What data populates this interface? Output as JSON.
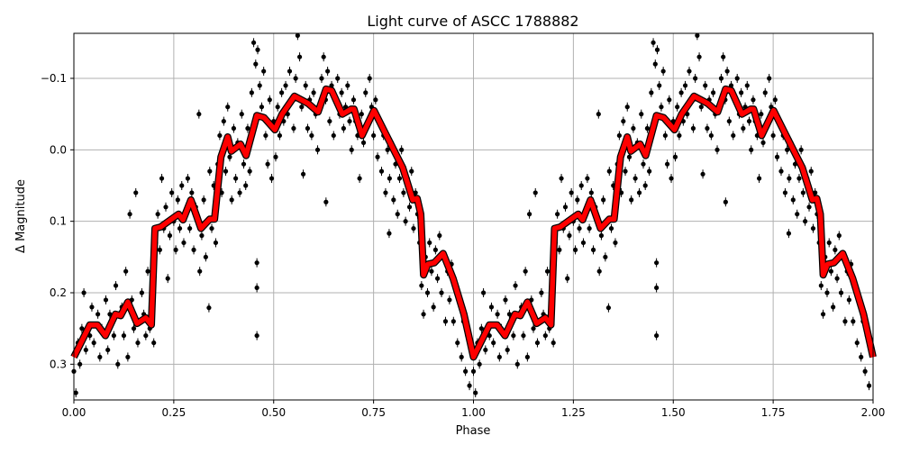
{
  "chart_data": {
    "type": "scatter",
    "title": "Light curve of ASCC 1788882",
    "xlabel": "Phase",
    "ylabel": "Δ Magnitude",
    "xlim": [
      0,
      2
    ],
    "ylim": [
      0.35,
      -0.163
    ],
    "y_inverted": true,
    "grid": true,
    "xticks": [
      "0.00",
      "0.25",
      "0.50",
      "0.75",
      "1.00",
      "1.25",
      "1.50",
      "1.75",
      "2.00"
    ],
    "xtick_values": [
      0,
      0.25,
      0.5,
      0.75,
      1,
      1.25,
      1.5,
      1.75,
      2
    ],
    "yticks": [
      "−0.1",
      "0.0",
      "0.1",
      "0.2",
      "0.3"
    ],
    "ytick_values": [
      -0.1,
      0,
      0.1,
      0.2,
      0.3
    ],
    "colors": {
      "points": "#000000",
      "model": "#ff0000",
      "model_outline": "#000000",
      "grid": "#b0b0b0"
    },
    "series": [
      {
        "kind": "observations-with-errorbars",
        "points": [
          [
            0.0,
            0.31
          ],
          [
            0.005,
            0.34
          ],
          [
            0.01,
            0.27
          ],
          [
            0.015,
            0.3
          ],
          [
            0.02,
            0.25
          ],
          [
            0.025,
            0.2
          ],
          [
            0.03,
            0.28
          ],
          [
            0.04,
            0.26
          ],
          [
            0.045,
            0.22
          ],
          [
            0.05,
            0.27
          ],
          [
            0.06,
            0.23
          ],
          [
            0.065,
            0.29
          ],
          [
            0.07,
            0.25
          ],
          [
            0.08,
            0.21
          ],
          [
            0.085,
            0.28
          ],
          [
            0.09,
            0.23
          ],
          [
            0.1,
            0.26
          ],
          [
            0.105,
            0.19
          ],
          [
            0.11,
            0.3
          ],
          [
            0.12,
            0.22
          ],
          [
            0.125,
            0.26
          ],
          [
            0.13,
            0.17
          ],
          [
            0.135,
            0.29
          ],
          [
            0.14,
            0.09
          ],
          [
            0.145,
            0.21
          ],
          [
            0.15,
            0.25
          ],
          [
            0.155,
            0.06
          ],
          [
            0.16,
            0.27
          ],
          [
            0.17,
            0.2
          ],
          [
            0.175,
            0.23
          ],
          [
            0.18,
            0.26
          ],
          [
            0.185,
            0.17
          ],
          [
            0.19,
            0.25
          ],
          [
            0.195,
            0.21
          ],
          [
            0.2,
            0.27
          ],
          [
            0.205,
            0.13
          ],
          [
            0.21,
            0.09
          ],
          [
            0.215,
            0.14
          ],
          [
            0.22,
            0.04
          ],
          [
            0.225,
            0.11
          ],
          [
            0.23,
            0.08
          ],
          [
            0.235,
            0.18
          ],
          [
            0.24,
            0.12
          ],
          [
            0.245,
            0.06
          ],
          [
            0.25,
            0.1
          ],
          [
            0.255,
            0.14
          ],
          [
            0.26,
            0.07
          ],
          [
            0.265,
            0.11
          ],
          [
            0.27,
            0.05
          ],
          [
            0.275,
            0.13
          ],
          [
            0.28,
            0.09
          ],
          [
            0.285,
            0.04
          ],
          [
            0.29,
            0.11
          ],
          [
            0.295,
            0.06
          ],
          [
            0.3,
            0.14
          ],
          [
            0.305,
            0.08
          ],
          [
            0.313,
            -0.05
          ],
          [
            0.315,
            0.17
          ],
          [
            0.32,
            0.12
          ],
          [
            0.325,
            0.07
          ],
          [
            0.33,
            0.15
          ],
          [
            0.338,
            0.221
          ],
          [
            0.34,
            0.03
          ],
          [
            0.345,
            0.11
          ],
          [
            0.35,
            0.05
          ],
          [
            0.355,
            0.13
          ],
          [
            0.36,
            0.02
          ],
          [
            0.365,
            -0.02
          ],
          [
            0.37,
            0.06
          ],
          [
            0.375,
            -0.04
          ],
          [
            0.38,
            0.03
          ],
          [
            0.385,
            -0.06
          ],
          [
            0.39,
            0.01
          ],
          [
            0.395,
            0.07
          ],
          [
            0.4,
            -0.03
          ],
          [
            0.405,
            0.04
          ],
          [
            0.41,
            -0.01
          ],
          [
            0.415,
            0.06
          ],
          [
            0.42,
            -0.05
          ],
          [
            0.425,
            0.02
          ],
          [
            0.43,
            0.05
          ],
          [
            0.435,
            -0.03
          ],
          [
            0.44,
            0.03
          ],
          [
            0.445,
            -0.08
          ],
          [
            0.45,
            -0.15
          ],
          [
            0.455,
            -0.12
          ],
          [
            0.458,
            0.158
          ],
          [
            0.458,
            0.193
          ],
          [
            0.458,
            0.26
          ],
          [
            0.46,
            -0.14
          ],
          [
            0.465,
            -0.09
          ],
          [
            0.47,
            -0.06
          ],
          [
            0.475,
            -0.11
          ],
          [
            0.48,
            -0.02
          ],
          [
            0.485,
            0.02
          ],
          [
            0.49,
            -0.07
          ],
          [
            0.495,
            0.04
          ],
          [
            0.5,
            -0.04
          ],
          [
            0.505,
            0.01
          ],
          [
            0.51,
            -0.06
          ],
          [
            0.515,
            -0.02
          ],
          [
            0.52,
            -0.08
          ],
          [
            0.525,
            -0.04
          ],
          [
            0.53,
            -0.09
          ],
          [
            0.535,
            -0.05
          ],
          [
            0.54,
            -0.11
          ],
          [
            0.545,
            -0.07
          ],
          [
            0.55,
            -0.03
          ],
          [
            0.555,
            -0.1
          ],
          [
            0.56,
            -0.16
          ],
          [
            0.565,
            -0.13
          ],
          [
            0.57,
            -0.06
          ],
          [
            0.574,
            0.034
          ],
          [
            0.58,
            -0.09
          ],
          [
            0.585,
            -0.03
          ],
          [
            0.59,
            -0.07
          ],
          [
            0.595,
            -0.02
          ],
          [
            0.6,
            -0.08
          ],
          [
            0.605,
            -0.05
          ],
          [
            0.61,
            0.0
          ],
          [
            0.615,
            -0.06
          ],
          [
            0.62,
            -0.1
          ],
          [
            0.625,
            -0.13
          ],
          [
            0.63,
            -0.07
          ],
          [
            0.631,
            0.073
          ],
          [
            0.635,
            -0.11
          ],
          [
            0.64,
            -0.04
          ],
          [
            0.645,
            -0.09
          ],
          [
            0.65,
            -0.02
          ],
          [
            0.655,
            -0.07
          ],
          [
            0.66,
            -0.1
          ],
          [
            0.665,
            -0.05
          ],
          [
            0.67,
            -0.08
          ],
          [
            0.675,
            -0.03
          ],
          [
            0.68,
            -0.06
          ],
          [
            0.685,
            -0.09
          ],
          [
            0.69,
            -0.04
          ],
          [
            0.695,
            0.0
          ],
          [
            0.7,
            -0.07
          ],
          [
            0.705,
            -0.04
          ],
          [
            0.71,
            -0.02
          ],
          [
            0.715,
            0.04
          ],
          [
            0.72,
            -0.05
          ],
          [
            0.725,
            -0.01
          ],
          [
            0.73,
            -0.08
          ],
          [
            0.735,
            -0.04
          ],
          [
            0.74,
            -0.1
          ],
          [
            0.745,
            -0.06
          ],
          [
            0.75,
            -0.02
          ],
          [
            0.755,
            -0.07
          ],
          [
            0.76,
            0.01
          ],
          [
            0.765,
            -0.04
          ],
          [
            0.77,
            0.03
          ],
          [
            0.775,
            -0.02
          ],
          [
            0.78,
            0.06
          ],
          [
            0.785,
            0.0
          ],
          [
            0.789,
            0.117
          ],
          [
            0.79,
            0.04
          ],
          [
            0.795,
            -0.01
          ],
          [
            0.8,
            0.07
          ],
          [
            0.805,
            0.02
          ],
          [
            0.81,
            0.09
          ],
          [
            0.815,
            0.04
          ],
          [
            0.82,
            0.0
          ],
          [
            0.825,
            0.06
          ],
          [
            0.83,
            0.1
          ],
          [
            0.835,
            0.04
          ],
          [
            0.84,
            0.08
          ],
          [
            0.845,
            0.03
          ],
          [
            0.85,
            0.11
          ],
          [
            0.855,
            0.06
          ],
          [
            0.86,
            0.09
          ],
          [
            0.865,
            0.13
          ],
          [
            0.87,
            0.19
          ],
          [
            0.875,
            0.23
          ],
          [
            0.88,
            0.15
          ],
          [
            0.885,
            0.2
          ],
          [
            0.89,
            0.13
          ],
          [
            0.895,
            0.17
          ],
          [
            0.9,
            0.22
          ],
          [
            0.905,
            0.14
          ],
          [
            0.91,
            0.18
          ],
          [
            0.915,
            0.12
          ],
          [
            0.92,
            0.2
          ],
          [
            0.925,
            0.15
          ],
          [
            0.93,
            0.24
          ],
          [
            0.935,
            0.17
          ],
          [
            0.94,
            0.21
          ],
          [
            0.945,
            0.16
          ],
          [
            0.95,
            0.24
          ],
          [
            0.955,
            0.19
          ],
          [
            0.96,
            0.27
          ],
          [
            0.965,
            0.21
          ],
          [
            0.97,
            0.29
          ],
          [
            0.975,
            0.24
          ],
          [
            0.98,
            0.31
          ],
          [
            0.985,
            0.26
          ],
          [
            0.99,
            0.33
          ],
          [
            0.995,
            0.28
          ]
        ]
      },
      {
        "kind": "model-curve",
        "points": [
          [
            0,
            0.29
          ],
          [
            0.04,
            0.245
          ],
          [
            0.059,
            0.245
          ],
          [
            0.079,
            0.26
          ],
          [
            0.104,
            0.23
          ],
          [
            0.117,
            0.232
          ],
          [
            0.135,
            0.213
          ],
          [
            0.158,
            0.243
          ],
          [
            0.18,
            0.235
          ],
          [
            0.194,
            0.245
          ],
          [
            0.203,
            0.11
          ],
          [
            0.217,
            0.108
          ],
          [
            0.262,
            0.09
          ],
          [
            0.273,
            0.098
          ],
          [
            0.293,
            0.07
          ],
          [
            0.318,
            0.11
          ],
          [
            0.34,
            0.097
          ],
          [
            0.352,
            0.097
          ],
          [
            0.368,
            0.01
          ],
          [
            0.385,
            -0.018
          ],
          [
            0.394,
            0.002
          ],
          [
            0.417,
            -0.008
          ],
          [
            0.431,
            0.008
          ],
          [
            0.458,
            -0.048
          ],
          [
            0.476,
            -0.045
          ],
          [
            0.503,
            -0.028
          ],
          [
            0.521,
            -0.05
          ],
          [
            0.552,
            -0.075
          ],
          [
            0.586,
            -0.065
          ],
          [
            0.611,
            -0.053
          ],
          [
            0.631,
            -0.085
          ],
          [
            0.645,
            -0.083
          ],
          [
            0.672,
            -0.05
          ],
          [
            0.694,
            -0.057
          ],
          [
            0.701,
            -0.057
          ],
          [
            0.721,
            -0.02
          ],
          [
            0.751,
            -0.055
          ],
          [
            0.778,
            -0.025
          ],
          [
            0.823,
            0.025
          ],
          [
            0.848,
            0.07
          ],
          [
            0.859,
            0.068
          ],
          [
            0.868,
            0.09
          ],
          [
            0.875,
            0.175
          ],
          [
            0.886,
            0.16
          ],
          [
            0.902,
            0.158
          ],
          [
            0.924,
            0.145
          ],
          [
            0.949,
            0.18
          ],
          [
            0.976,
            0.23
          ],
          [
            1.0,
            0.29
          ]
        ]
      }
    ]
  }
}
